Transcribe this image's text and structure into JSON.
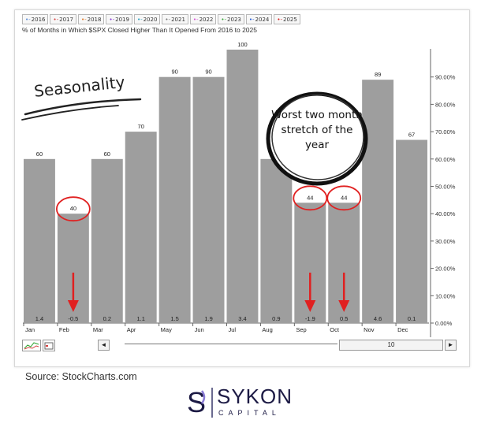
{
  "legend": [
    "2016",
    "2017",
    "2018",
    "2019",
    "2020",
    "2021",
    "2022",
    "2023",
    "2024",
    "2025"
  ],
  "legend_colors": [
    "#5a8bd6",
    "#d64040",
    "#e07b2a",
    "#8a3ad6",
    "#2aa1c0",
    "#777777",
    "#d64fd6",
    "#3aa83a",
    "#2a5fd6",
    "#d62020"
  ],
  "chart_data": {
    "type": "bar",
    "title": "% of Months in Which $SPX Closed Higher Than It Opened From 2016 to 2025",
    "categories": [
      "Jan",
      "Feb",
      "Mar",
      "Apr",
      "May",
      "Jun",
      "Jul",
      "Aug",
      "Sep",
      "Oct",
      "Nov",
      "Dec"
    ],
    "values": [
      60,
      40,
      60,
      70,
      90,
      90,
      100,
      60,
      44,
      44,
      89,
      67
    ],
    "bar_labels": [
      "60",
      "40",
      "60",
      "70",
      "90",
      "90",
      "100",
      "60",
      "44",
      "44",
      "89",
      "67"
    ],
    "avg_change_labels": [
      "1.4",
      "-0.5",
      "0.2",
      "1.1",
      "1.5",
      "1.9",
      "3.4",
      "0.9",
      "-1.9",
      "0.5",
      "4.6",
      "0.1"
    ],
    "y_tick_labels": [
      "90.00%",
      "80.00%",
      "70.00%",
      "60.00%",
      "50.00%",
      "40.00%",
      "30.00%",
      "20.00%",
      "10.00%",
      "0.00%"
    ],
    "y_ticks": [
      90,
      80,
      70,
      60,
      50,
      40,
      30,
      20,
      10,
      0
    ],
    "ylim": [
      0,
      100
    ],
    "bar_color": "#9e9e9e",
    "highlight_color": "#e02020",
    "circled_categories": [
      "Feb",
      "Sep",
      "Oct"
    ],
    "arrow_categories": [
      "Feb",
      "Sep",
      "Oct"
    ]
  },
  "annotations": {
    "seasonality": "Seasonality",
    "worst_note": "Worst two month stretch of the year"
  },
  "toolbar": {
    "range_value": "10",
    "prev": "◄",
    "next": "►"
  },
  "source": "Source: StockCharts.com",
  "logo": {
    "initial": "S",
    "name": "SYKON",
    "sub": "CAPITAL",
    "color": "#1c1a44"
  }
}
